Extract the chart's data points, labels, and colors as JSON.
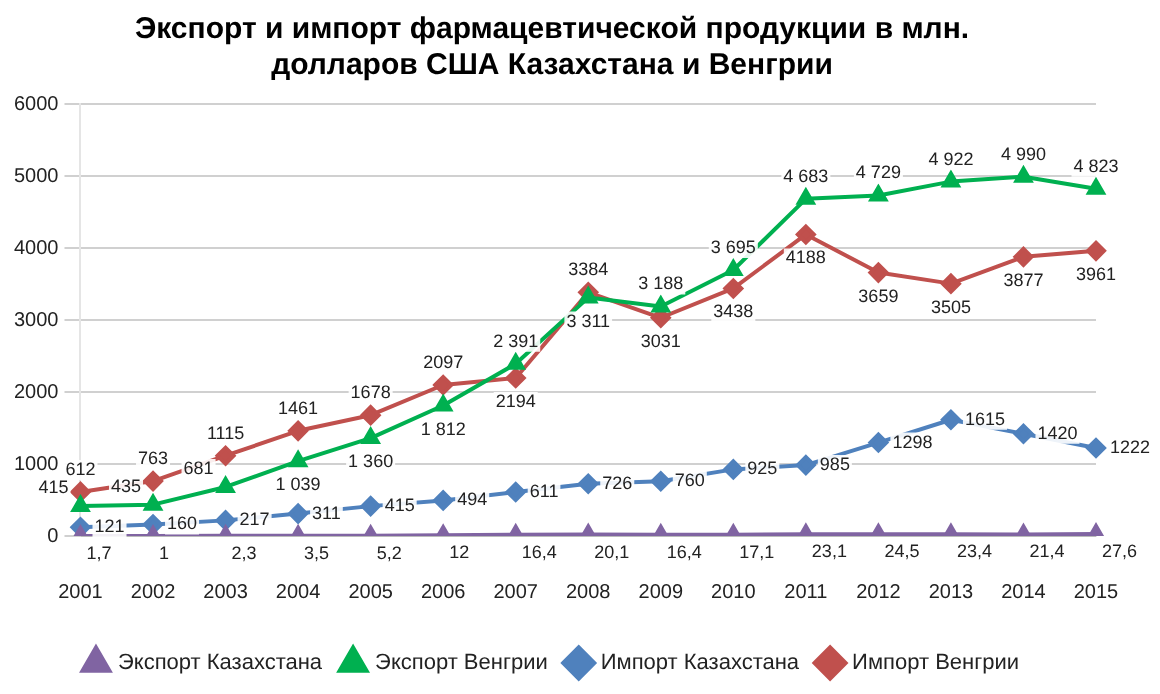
{
  "chart_data": {
    "type": "line",
    "title": [
      "Экспорт и импорт фармацевтической продукции в млн.",
      "долларов США Казахстана и Венгрии"
    ],
    "categories": [
      "2001",
      "2002",
      "2003",
      "2004",
      "2005",
      "2006",
      "2007",
      "2008",
      "2009",
      "2010",
      "2011",
      "2012",
      "2013",
      "2014",
      "2015"
    ],
    "series": [
      {
        "name": "Экспорт Казахстана",
        "color": "#8064a2",
        "marker": "triangle",
        "values": [
          1.7,
          1,
          2.3,
          3.5,
          5.2,
          12,
          16.4,
          20.1,
          16.4,
          17.1,
          23.1,
          24.5,
          23.4,
          21.4,
          27.6
        ],
        "value_labels": [
          "1,7",
          "1",
          "2,3",
          "3,5",
          "5,2",
          "12",
          "16,4",
          "20,1",
          "16,4",
          "17,1",
          "23,1",
          "24,5",
          "23,4",
          "21,4",
          "27,6"
        ]
      },
      {
        "name": "Экспорт Венгрии",
        "color": "#00b050",
        "marker": "triangle",
        "values": [
          415,
          435,
          681,
          1039,
          1360,
          1812,
          2391,
          3311,
          3188,
          3695,
          4683,
          4729,
          4922,
          4990,
          4823
        ],
        "value_labels": [
          "415",
          "435",
          "681",
          "1 039",
          "1 360",
          "1 812",
          "2 391",
          "3 311",
          "3 188",
          "3 695",
          "4 683",
          "4 729",
          "4 922",
          "4 990",
          "4 823"
        ]
      },
      {
        "name": "Импорт Казахстана",
        "color": "#4f81bd",
        "marker": "diamond",
        "values": [
          121,
          160,
          217,
          311,
          415,
          494,
          611,
          726,
          760,
          925,
          985,
          1298,
          1615,
          1420,
          1222
        ],
        "value_labels": [
          "121",
          "160",
          "217",
          "311",
          "415",
          "494",
          "611",
          "726",
          "760",
          "925",
          "985",
          "1298",
          "1615",
          "1420",
          "1222"
        ]
      },
      {
        "name": "Импорт Венгрии",
        "color": "#c0504d",
        "marker": "diamond",
        "values": [
          612,
          763,
          1115,
          1461,
          1678,
          2097,
          2194,
          3384,
          3031,
          3438,
          4188,
          3659,
          3505,
          3877,
          3961
        ],
        "value_labels": [
          "612",
          "763",
          "1115",
          "1461",
          "1678",
          "2097",
          "2194",
          "3384",
          "3031",
          "3438",
          "4188",
          "3659",
          "3505",
          "3877",
          "3961"
        ]
      }
    ],
    "ylim": [
      0,
      6000
    ],
    "yticks": [
      0,
      1000,
      2000,
      3000,
      4000,
      5000,
      6000
    ],
    "grid": "y",
    "legend": "bottom"
  }
}
